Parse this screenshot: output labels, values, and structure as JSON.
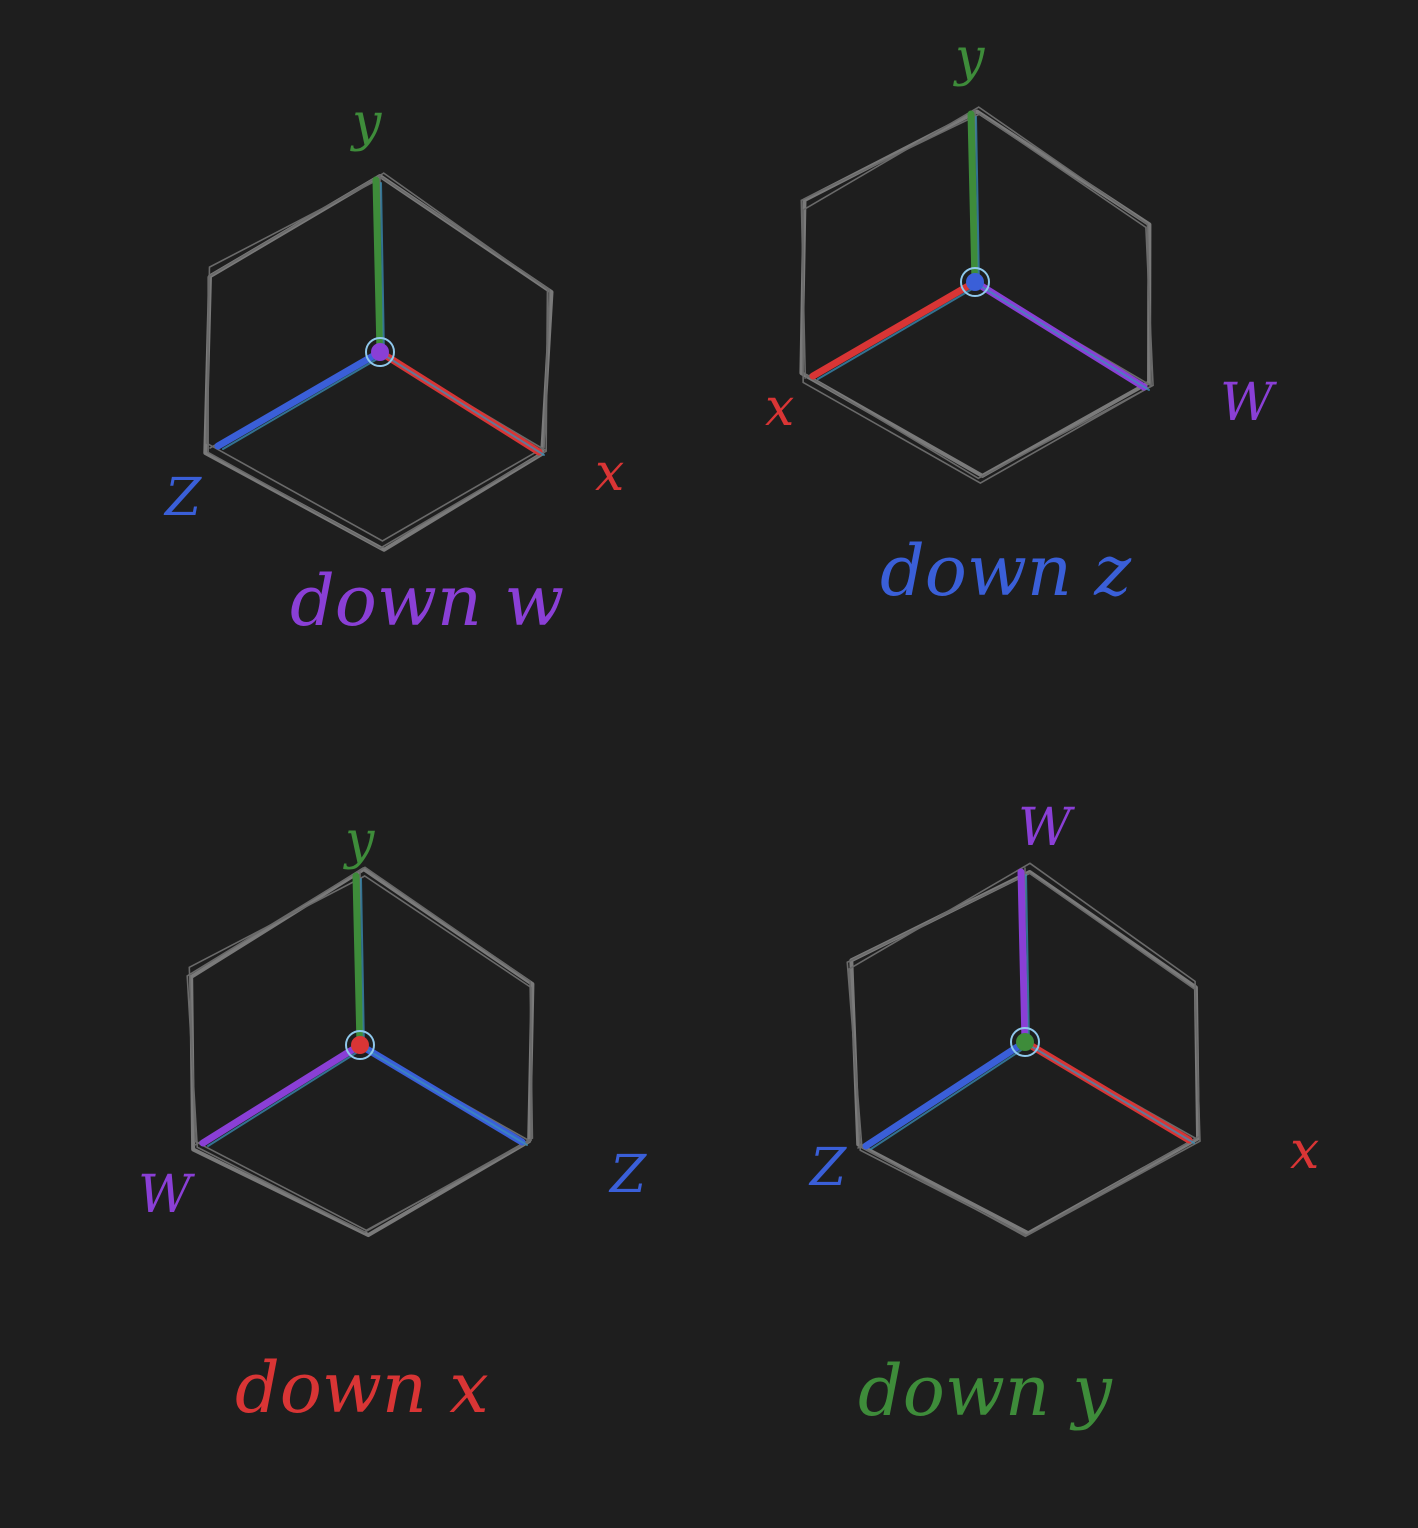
{
  "colors": {
    "background": "#1e1e1e",
    "frame": "#7a7a7a",
    "x": "#d93535",
    "y": "#3e8c3a",
    "z": "#3a5fd8",
    "w": "#8a3fd6",
    "origin": "#8fc8ec"
  },
  "panels": [
    {
      "caption": "down w",
      "caption_color": "w",
      "center_axis": "w",
      "axes": [
        {
          "label": "y",
          "color": "y",
          "direction": "up"
        },
        {
          "label": "Z",
          "color": "z",
          "direction": "lower-left"
        },
        {
          "label": "x",
          "color": "x",
          "direction": "lower-right"
        }
      ]
    },
    {
      "caption": "down z",
      "caption_color": "z",
      "center_axis": "z",
      "axes": [
        {
          "label": "y",
          "color": "y",
          "direction": "up"
        },
        {
          "label": "x",
          "color": "x",
          "direction": "lower-left"
        },
        {
          "label": "W",
          "color": "w",
          "direction": "lower-right"
        }
      ]
    },
    {
      "caption": "down x",
      "caption_color": "x",
      "center_axis": "x",
      "axes": [
        {
          "label": "y",
          "color": "y",
          "direction": "up"
        },
        {
          "label": "W",
          "color": "w",
          "direction": "lower-left"
        },
        {
          "label": "Z",
          "color": "z",
          "direction": "lower-right"
        }
      ]
    },
    {
      "caption": "down y",
      "caption_color": "y",
      "center_axis": "y",
      "axes": [
        {
          "label": "W",
          "color": "w",
          "direction": "up"
        },
        {
          "label": "Z",
          "color": "z",
          "direction": "lower-left"
        },
        {
          "label": "x",
          "color": "x",
          "direction": "lower-right"
        }
      ]
    }
  ]
}
